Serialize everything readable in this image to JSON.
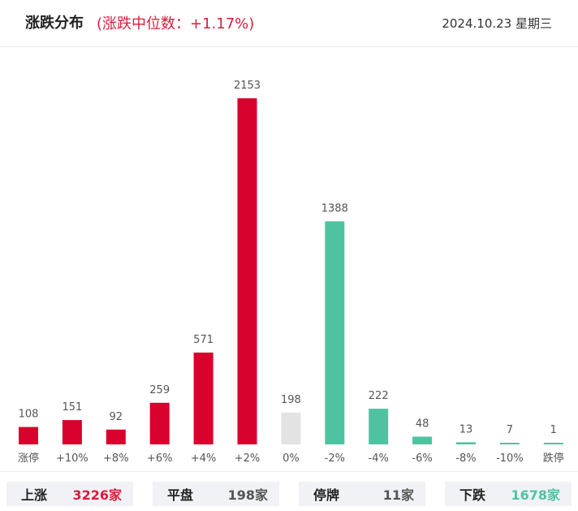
{
  "header": {
    "title": "涨跌分布",
    "median_text": "(涨跌中位数：+1.17%)",
    "date": "2024.10.23 星期三"
  },
  "colors": {
    "up": "#d8002c",
    "flat": "#e3e3e3",
    "down": "#4fc3a1",
    "up_text": "#d81e3a",
    "flat_text": "#555555",
    "down_text": "#4fc3a1"
  },
  "chart_data": {
    "type": "bar",
    "categories": [
      "涨停",
      "+10%",
      "+8%",
      "+6%",
      "+4%",
      "+2%",
      "0%",
      "-2%",
      "-4%",
      "-6%",
      "-8%",
      "-10%",
      "跌停"
    ],
    "values": [
      108,
      151,
      92,
      259,
      571,
      2153,
      198,
      1388,
      222,
      48,
      13,
      7,
      1
    ],
    "bar_colors": [
      "up",
      "up",
      "up",
      "up",
      "up",
      "up",
      "flat",
      "down",
      "down",
      "down",
      "down",
      "down",
      "down"
    ],
    "data_labels": true,
    "grid": false
  },
  "summary": [
    {
      "label": "上涨",
      "value": "3226家",
      "color": "up_text"
    },
    {
      "label": "平盘",
      "value": "198家",
      "color": "flat_text"
    },
    {
      "label": "停牌",
      "value": "11家",
      "color": "flat_text"
    },
    {
      "label": "下跌",
      "value": "1678家",
      "color": "down_text"
    }
  ]
}
